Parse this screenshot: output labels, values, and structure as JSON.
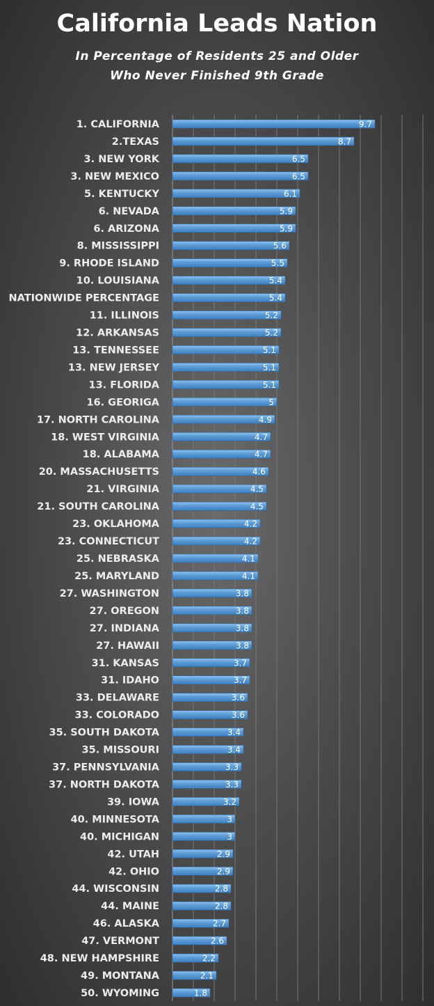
{
  "chart_data": {
    "type": "bar",
    "orientation": "horizontal",
    "title": "California Leads Nation",
    "subtitle": [
      "In Percentage of Residents 25 and Older",
      "Who Never Finished 9th Grade"
    ],
    "categories": [
      "1. CALIFORNIA",
      "2.TEXAS",
      "3. NEW YORK",
      "3. NEW MEXICO",
      "5. KENTUCKY",
      "6. NEVADA",
      "6. ARIZONA",
      "8. MISSISSIPPI",
      "9. RHODE ISLAND",
      "10. LOUISIANA",
      "NATIONWIDE PERCENTAGE",
      "11. ILLINOIS",
      "12. ARKANSAS",
      "13. TENNESSEE",
      "13. NEW JERSEY",
      "13. FLORIDA",
      "16. GEORIGA",
      "17. NORTH CAROLINA",
      "18. WEST VIRGINIA",
      "18. ALABAMA",
      "20. MASSACHUSETTS",
      "21. VIRGINIA",
      "21. SOUTH CAROLINA",
      "23. OKLAHOMA",
      "23. CONNECTICUT",
      "25. NEBRASKA",
      "25. MARYLAND",
      "27. WASHINGTON",
      "27. OREGON",
      "27. INDIANA",
      "27. HAWAII",
      "31. KANSAS",
      "31. IDAHO",
      "33. DELAWARE",
      "33. COLORADO",
      "35. SOUTH DAKOTA",
      "35. MISSOURI",
      "37. PENNSYLVANIA",
      "37. NORTH DAKOTA",
      "39. IOWA",
      "40. MINNESOTA",
      "40. MICHIGAN",
      "42. UTAH",
      "42. OHIO",
      "44. WISCONSIN",
      "44. MAINE",
      "46. ALASKA",
      "47. VERMONT",
      "48. NEW HAMPSHIRE",
      "49. MONTANA",
      "50. WYOMING"
    ],
    "values": [
      9.7,
      8.7,
      6.5,
      6.5,
      6.1,
      5.9,
      5.9,
      5.6,
      5.5,
      5.4,
      5.4,
      5.2,
      5.2,
      5.1,
      5.1,
      5.1,
      5,
      4.9,
      4.7,
      4.7,
      4.6,
      4.5,
      4.5,
      4.2,
      4.2,
      4.1,
      4.1,
      3.8,
      3.8,
      3.8,
      3.8,
      3.7,
      3.7,
      3.6,
      3.6,
      3.4,
      3.4,
      3.3,
      3.3,
      3.2,
      3,
      3,
      2.9,
      2.9,
      2.8,
      2.8,
      2.7,
      2.6,
      2.2,
      2.1,
      1.8
    ],
    "xlim": [
      0,
      12
    ],
    "grid": true,
    "legend": "none",
    "bar_color": "#5b9bd5"
  }
}
